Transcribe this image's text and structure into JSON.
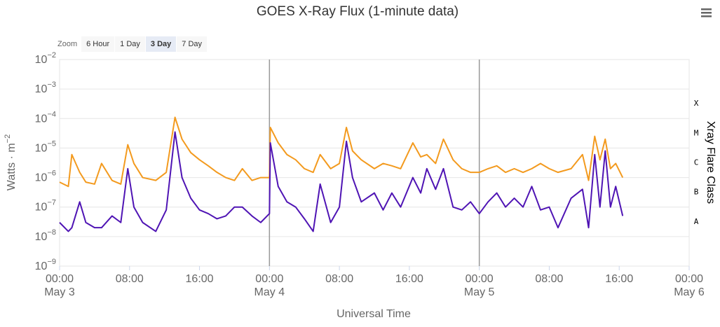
{
  "chart_data": {
    "type": "line",
    "title": "GOES X-Ray Flux (1-minute data)",
    "zoom": {
      "label": "Zoom",
      "buttons": [
        "6 Hour",
        "1 Day",
        "3 Day",
        "7 Day"
      ],
      "selected": 2
    },
    "x_label": "Universal Time",
    "y_label": "Watts · m",
    "y_label_exponent": "−2",
    "y2_label": "Xray Flare Class",
    "log_scale": true,
    "grid": true,
    "x": [
      "May 3 00:00",
      "May 3 01:00",
      "May 3 01:24",
      "May 3 02:18",
      "May 3 03:00",
      "May 3 04:00",
      "May 3 04:48",
      "May 3 06:00",
      "May 3 07:00",
      "May 3 07:48",
      "May 3 08:30",
      "May 3 09:30",
      "May 3 11:00",
      "May 3 12:12",
      "May 3 13:12",
      "May 3 14:00",
      "May 3 15:00",
      "May 3 16:00",
      "May 3 17:00",
      "May 3 18:00",
      "May 3 19:00",
      "May 3 20:00",
      "May 3 20:54",
      "May 3 22:00",
      "May 3 23:00",
      "May 4 00:00",
      "May 4 00:06",
      "May 4 01:00",
      "May 4 02:00",
      "May 4 03:00",
      "May 4 04:00",
      "May 4 05:00",
      "May 4 05:48",
      "May 4 07:00",
      "May 4 08:00",
      "May 4 08:48",
      "May 4 09:30",
      "May 4 10:30",
      "May 4 12:00",
      "May 4 13:00",
      "May 4 14:00",
      "May 4 15:00",
      "May 4 16:24",
      "May 4 17:18",
      "May 4 18:00",
      "May 4 19:00",
      "May 4 19:54",
      "May 4 21:00",
      "May 4 22:00",
      "May 4 23:00",
      "May 5 00:00",
      "May 5 01:00",
      "May 5 02:00",
      "May 5 03:00",
      "May 5 04:00",
      "May 5 05:00",
      "May 5 06:00",
      "May 5 07:00",
      "May 5 08:00",
      "May 5 09:00",
      "May 5 10:30",
      "May 5 11:48",
      "May 5 12:30",
      "May 5 13:12",
      "May 5 13:48",
      "May 5 14:24",
      "May 5 15:00",
      "May 5 15:36",
      "May 5 16:24"
    ],
    "series": [
      {
        "color": "#f39a1e",
        "values": [
          7e-07,
          5e-07,
          6e-06,
          1.5e-06,
          7e-07,
          6e-07,
          3e-06,
          8e-07,
          6e-07,
          1.3e-05,
          3e-06,
          1e-06,
          8e-07,
          1.5e-06,
          0.00011,
          2e-05,
          7e-06,
          4e-06,
          2.5e-06,
          1.5e-06,
          1e-06,
          8e-07,
          2e-06,
          8e-07,
          1e-06,
          1e-06,
          5e-05,
          1.5e-05,
          6e-06,
          4e-06,
          2e-06,
          1.5e-06,
          6e-06,
          2e-06,
          3e-06,
          5e-05,
          8e-06,
          4e-06,
          2e-06,
          3e-06,
          2.5e-06,
          2e-06,
          1.5e-05,
          5e-06,
          6e-06,
          3e-06,
          2e-05,
          4e-06,
          2e-06,
          1.5e-06,
          1.5e-06,
          2e-06,
          2.5e-06,
          1.5e-06,
          2e-06,
          1.5e-06,
          2e-06,
          3e-06,
          2e-06,
          1.5e-06,
          2e-06,
          6e-06,
          8e-07,
          2.5e-05,
          4e-06,
          2e-05,
          2e-06,
          3e-06,
          1e-06
        ]
      },
      {
        "color": "#4f14b4",
        "values": [
          3e-08,
          1.5e-08,
          2e-08,
          1.5e-07,
          3e-08,
          2e-08,
          2e-08,
          5e-08,
          3e-08,
          2e-06,
          1e-07,
          3e-08,
          1.5e-08,
          8e-08,
          3.5e-05,
          1e-06,
          2e-07,
          8e-08,
          6e-08,
          4e-08,
          5e-08,
          1e-07,
          1e-07,
          5e-08,
          3e-08,
          6e-08,
          1.5e-05,
          5e-07,
          1.5e-07,
          1e-07,
          4e-08,
          1.5e-08,
          6e-07,
          3e-08,
          1e-07,
          1.7e-05,
          1e-06,
          1.5e-07,
          3e-07,
          8e-08,
          3e-07,
          1e-07,
          1e-06,
          3e-07,
          2e-06,
          4e-07,
          2e-06,
          1e-07,
          8e-08,
          1.5e-07,
          6e-08,
          1.5e-07,
          3e-07,
          1e-07,
          2e-07,
          1e-07,
          5e-07,
          8e-08,
          1e-07,
          2e-08,
          2e-07,
          4e-07,
          2e-08,
          6e-06,
          1e-07,
          8e-06,
          1e-07,
          5e-07,
          5e-08
        ]
      }
    ],
    "xlim": [
      "May 3 00:00",
      "May 6 00:00"
    ],
    "xticks": [
      {
        "value": "May 3 00:00",
        "label": "00:00",
        "date": "May 3"
      },
      {
        "value": "May 3 08:00",
        "label": "08:00"
      },
      {
        "value": "May 3 16:00",
        "label": "16:00"
      },
      {
        "value": "May 4 00:00",
        "label": "00:00",
        "date": "May 4"
      },
      {
        "value": "May 4 08:00",
        "label": "08:00"
      },
      {
        "value": "May 4 16:00",
        "label": "16:00"
      },
      {
        "value": "May 5 00:00",
        "label": "00:00",
        "date": "May 5"
      },
      {
        "value": "May 5 08:00",
        "label": "08:00"
      },
      {
        "value": "May 5 16:00",
        "label": "16:00"
      },
      {
        "value": "May 6 00:00",
        "label": "00:00",
        "date": "May 6"
      }
    ],
    "ylim": [
      1e-09,
      0.01
    ],
    "yticks": [
      {
        "value": 1e-09,
        "label": "10",
        "exponent": "−9"
      },
      {
        "value": 1e-08,
        "label": "10",
        "exponent": "−8"
      },
      {
        "value": 1e-07,
        "label": "10",
        "exponent": "−7"
      },
      {
        "value": 1e-06,
        "label": "10",
        "exponent": "−6"
      },
      {
        "value": 1e-05,
        "label": "10",
        "exponent": "−5"
      },
      {
        "value": 0.0001,
        "label": "10",
        "exponent": "−4"
      },
      {
        "value": 0.001,
        "label": "10",
        "exponent": "−3"
      },
      {
        "value": 0.01,
        "label": "10",
        "exponent": "−2"
      }
    ],
    "y2lim": [
      1e-09,
      0.01
    ],
    "y2ticks": [
      {
        "value": 1e-08,
        "label": "A"
      },
      {
        "value": 1e-07,
        "label": "B"
      },
      {
        "value": 1e-06,
        "label": "C"
      },
      {
        "value": 1e-05,
        "label": "M"
      },
      {
        "value": 0.0001,
        "label": "X"
      }
    ]
  }
}
